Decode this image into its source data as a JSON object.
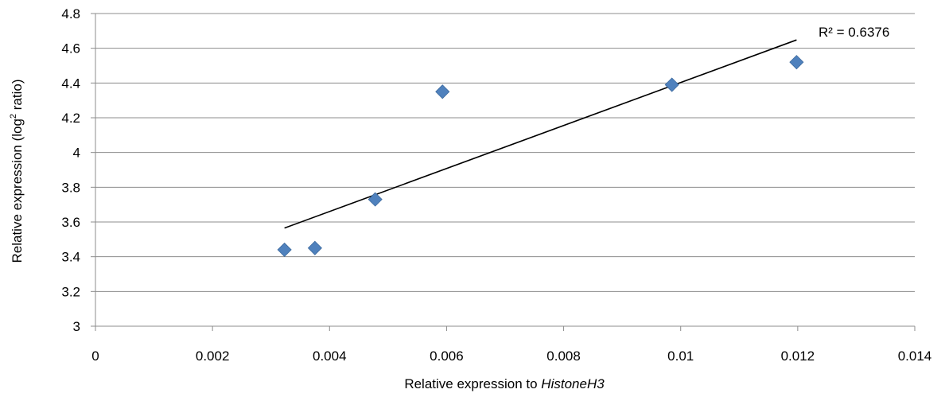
{
  "chart_data": {
    "type": "scatter",
    "title": "",
    "xlabel_prefix": "Relative expression  to ",
    "xlabel_italic": "HistoneH3",
    "ylabel_main": "Relative expression (log",
    "ylabel_sup": "2",
    "ylabel_end": " ratio)",
    "xlim": [
      0,
      0.014
    ],
    "ylim": [
      3,
      4.8
    ],
    "x_ticks": [
      0,
      0.002,
      0.004,
      0.006,
      0.008,
      0.01,
      0.012,
      0.014
    ],
    "x_tick_labels": [
      "0",
      "0.002",
      "0.004",
      "0.006",
      "0.008",
      "0.01",
      "0.012",
      "0.014"
    ],
    "y_ticks": [
      3,
      3.2,
      3.4,
      3.6,
      3.8,
      4,
      4.2,
      4.4,
      4.6,
      4.8
    ],
    "y_tick_labels": [
      "3",
      "3.2",
      "3.4",
      "3.6",
      "3.8",
      "4",
      "4.2",
      "4.4",
      "4.6",
      "4.8"
    ],
    "grid": "horizontal",
    "marker": "diamond",
    "marker_color": "#4F81BD",
    "series": [
      {
        "x": [
          0.00323,
          0.00375,
          0.00478,
          0.00593,
          0.00985,
          0.01198
        ],
        "y": [
          3.44,
          3.45,
          3.73,
          4.35,
          4.39,
          4.52
        ]
      }
    ],
    "trendline": {
      "type": "linear",
      "x": [
        0.00323,
        0.01198
      ],
      "y": [
        3.565,
        4.648
      ],
      "color": "#000000"
    },
    "annotation": "R² = 0.6376"
  }
}
